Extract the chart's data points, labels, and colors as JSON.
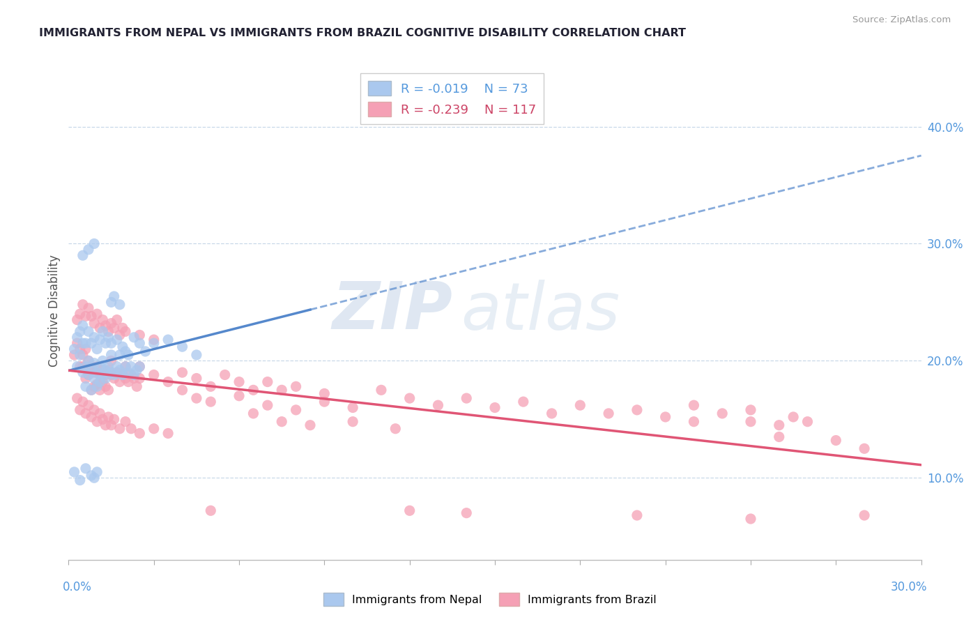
{
  "title": "IMMIGRANTS FROM NEPAL VS IMMIGRANTS FROM BRAZIL COGNITIVE DISABILITY CORRELATION CHART",
  "source": "Source: ZipAtlas.com",
  "ylabel": "Cognitive Disability",
  "right_yticks": [
    "10.0%",
    "20.0%",
    "30.0%",
    "40.0%"
  ],
  "right_ytick_vals": [
    0.1,
    0.2,
    0.3,
    0.4
  ],
  "xmin": 0.0,
  "xmax": 0.3,
  "ymin": 0.03,
  "ymax": 0.455,
  "legend_nepal_r": "-0.019",
  "legend_nepal_n": "73",
  "legend_brazil_r": "-0.239",
  "legend_brazil_n": "117",
  "nepal_color": "#aac8ee",
  "brazil_color": "#f5a0b5",
  "nepal_line_color": "#5588cc",
  "brazil_line_color": "#e05575",
  "nepal_line_solid_end": 0.085,
  "watermark_zip": "ZIP",
  "watermark_atlas": "atlas",
  "title_color": "#222233",
  "axis_label_color": "#5599dd",
  "nepal_scatter": [
    [
      0.002,
      0.21
    ],
    [
      0.003,
      0.195
    ],
    [
      0.004,
      0.205
    ],
    [
      0.005,
      0.19
    ],
    [
      0.005,
      0.215
    ],
    [
      0.006,
      0.195
    ],
    [
      0.006,
      0.178
    ],
    [
      0.007,
      0.2
    ],
    [
      0.007,
      0.188
    ],
    [
      0.008,
      0.192
    ],
    [
      0.008,
      0.175
    ],
    [
      0.009,
      0.185
    ],
    [
      0.009,
      0.198
    ],
    [
      0.01,
      0.19
    ],
    [
      0.01,
      0.178
    ],
    [
      0.011,
      0.195
    ],
    [
      0.011,
      0.182
    ],
    [
      0.012,
      0.188
    ],
    [
      0.012,
      0.2
    ],
    [
      0.013,
      0.192
    ],
    [
      0.013,
      0.185
    ],
    [
      0.014,
      0.195
    ],
    [
      0.015,
      0.19
    ],
    [
      0.015,
      0.205
    ],
    [
      0.016,
      0.188
    ],
    [
      0.017,
      0.195
    ],
    [
      0.018,
      0.192
    ],
    [
      0.019,
      0.188
    ],
    [
      0.02,
      0.195
    ],
    [
      0.021,
      0.19
    ],
    [
      0.022,
      0.195
    ],
    [
      0.023,
      0.188
    ],
    [
      0.024,
      0.192
    ],
    [
      0.025,
      0.195
    ],
    [
      0.003,
      0.22
    ],
    [
      0.004,
      0.225
    ],
    [
      0.005,
      0.23
    ],
    [
      0.006,
      0.215
    ],
    [
      0.007,
      0.225
    ],
    [
      0.008,
      0.215
    ],
    [
      0.009,
      0.22
    ],
    [
      0.01,
      0.21
    ],
    [
      0.011,
      0.218
    ],
    [
      0.012,
      0.225
    ],
    [
      0.013,
      0.215
    ],
    [
      0.014,
      0.22
    ],
    [
      0.015,
      0.215
    ],
    [
      0.017,
      0.218
    ],
    [
      0.018,
      0.205
    ],
    [
      0.019,
      0.212
    ],
    [
      0.02,
      0.208
    ],
    [
      0.021,
      0.205
    ],
    [
      0.002,
      0.105
    ],
    [
      0.004,
      0.098
    ],
    [
      0.006,
      0.108
    ],
    [
      0.008,
      0.102
    ],
    [
      0.009,
      0.1
    ],
    [
      0.01,
      0.105
    ],
    [
      0.007,
      0.295
    ],
    [
      0.009,
      0.3
    ],
    [
      0.005,
      0.29
    ],
    [
      0.015,
      0.25
    ],
    [
      0.016,
      0.255
    ],
    [
      0.018,
      0.248
    ],
    [
      0.023,
      0.22
    ],
    [
      0.025,
      0.215
    ],
    [
      0.027,
      0.208
    ],
    [
      0.03,
      0.215
    ],
    [
      0.035,
      0.218
    ],
    [
      0.04,
      0.212
    ],
    [
      0.045,
      0.205
    ]
  ],
  "brazil_scatter": [
    [
      0.002,
      0.205
    ],
    [
      0.003,
      0.215
    ],
    [
      0.004,
      0.195
    ],
    [
      0.004,
      0.21
    ],
    [
      0.005,
      0.205
    ],
    [
      0.005,
      0.195
    ],
    [
      0.006,
      0.21
    ],
    [
      0.006,
      0.185
    ],
    [
      0.007,
      0.2
    ],
    [
      0.007,
      0.188
    ],
    [
      0.008,
      0.195
    ],
    [
      0.008,
      0.175
    ],
    [
      0.009,
      0.19
    ],
    [
      0.009,
      0.178
    ],
    [
      0.01,
      0.195
    ],
    [
      0.01,
      0.18
    ],
    [
      0.011,
      0.188
    ],
    [
      0.011,
      0.175
    ],
    [
      0.012,
      0.192
    ],
    [
      0.012,
      0.182
    ],
    [
      0.013,
      0.188
    ],
    [
      0.013,
      0.178
    ],
    [
      0.014,
      0.192
    ],
    [
      0.014,
      0.175
    ],
    [
      0.015,
      0.188
    ],
    [
      0.015,
      0.2
    ],
    [
      0.016,
      0.185
    ],
    [
      0.017,
      0.19
    ],
    [
      0.018,
      0.182
    ],
    [
      0.019,
      0.188
    ],
    [
      0.02,
      0.185
    ],
    [
      0.02,
      0.195
    ],
    [
      0.021,
      0.182
    ],
    [
      0.022,
      0.188
    ],
    [
      0.023,
      0.185
    ],
    [
      0.024,
      0.178
    ],
    [
      0.025,
      0.185
    ],
    [
      0.025,
      0.195
    ],
    [
      0.003,
      0.235
    ],
    [
      0.004,
      0.24
    ],
    [
      0.005,
      0.248
    ],
    [
      0.006,
      0.238
    ],
    [
      0.007,
      0.245
    ],
    [
      0.008,
      0.238
    ],
    [
      0.009,
      0.232
    ],
    [
      0.01,
      0.24
    ],
    [
      0.011,
      0.228
    ],
    [
      0.012,
      0.235
    ],
    [
      0.013,
      0.23
    ],
    [
      0.014,
      0.225
    ],
    [
      0.015,
      0.232
    ],
    [
      0.016,
      0.228
    ],
    [
      0.017,
      0.235
    ],
    [
      0.018,
      0.222
    ],
    [
      0.019,
      0.228
    ],
    [
      0.02,
      0.225
    ],
    [
      0.025,
      0.222
    ],
    [
      0.03,
      0.218
    ],
    [
      0.003,
      0.168
    ],
    [
      0.004,
      0.158
    ],
    [
      0.005,
      0.165
    ],
    [
      0.006,
      0.155
    ],
    [
      0.007,
      0.162
    ],
    [
      0.008,
      0.152
    ],
    [
      0.009,
      0.158
    ],
    [
      0.01,
      0.148
    ],
    [
      0.011,
      0.155
    ],
    [
      0.012,
      0.15
    ],
    [
      0.013,
      0.145
    ],
    [
      0.014,
      0.152
    ],
    [
      0.015,
      0.145
    ],
    [
      0.016,
      0.15
    ],
    [
      0.018,
      0.142
    ],
    [
      0.02,
      0.148
    ],
    [
      0.022,
      0.142
    ],
    [
      0.025,
      0.138
    ],
    [
      0.03,
      0.142
    ],
    [
      0.035,
      0.138
    ],
    [
      0.03,
      0.188
    ],
    [
      0.035,
      0.182
    ],
    [
      0.04,
      0.19
    ],
    [
      0.045,
      0.185
    ],
    [
      0.05,
      0.178
    ],
    [
      0.055,
      0.188
    ],
    [
      0.06,
      0.182
    ],
    [
      0.065,
      0.175
    ],
    [
      0.07,
      0.182
    ],
    [
      0.075,
      0.175
    ],
    [
      0.08,
      0.178
    ],
    [
      0.09,
      0.172
    ],
    [
      0.04,
      0.175
    ],
    [
      0.045,
      0.168
    ],
    [
      0.05,
      0.165
    ],
    [
      0.06,
      0.17
    ],
    [
      0.07,
      0.162
    ],
    [
      0.08,
      0.158
    ],
    [
      0.09,
      0.165
    ],
    [
      0.1,
      0.16
    ],
    [
      0.11,
      0.175
    ],
    [
      0.12,
      0.168
    ],
    [
      0.13,
      0.162
    ],
    [
      0.14,
      0.168
    ],
    [
      0.15,
      0.16
    ],
    [
      0.16,
      0.165
    ],
    [
      0.17,
      0.155
    ],
    [
      0.18,
      0.162
    ],
    [
      0.19,
      0.155
    ],
    [
      0.2,
      0.158
    ],
    [
      0.21,
      0.152
    ],
    [
      0.22,
      0.148
    ],
    [
      0.23,
      0.155
    ],
    [
      0.24,
      0.148
    ],
    [
      0.25,
      0.145
    ],
    [
      0.065,
      0.155
    ],
    [
      0.075,
      0.148
    ],
    [
      0.085,
      0.145
    ],
    [
      0.1,
      0.148
    ],
    [
      0.115,
      0.142
    ],
    [
      0.24,
      0.158
    ],
    [
      0.255,
      0.152
    ],
    [
      0.26,
      0.148
    ],
    [
      0.12,
      0.072
    ],
    [
      0.05,
      0.072
    ],
    [
      0.14,
      0.07
    ],
    [
      0.2,
      0.068
    ],
    [
      0.24,
      0.065
    ],
    [
      0.28,
      0.068
    ],
    [
      0.25,
      0.135
    ],
    [
      0.27,
      0.132
    ],
    [
      0.28,
      0.125
    ],
    [
      0.22,
      0.162
    ]
  ]
}
